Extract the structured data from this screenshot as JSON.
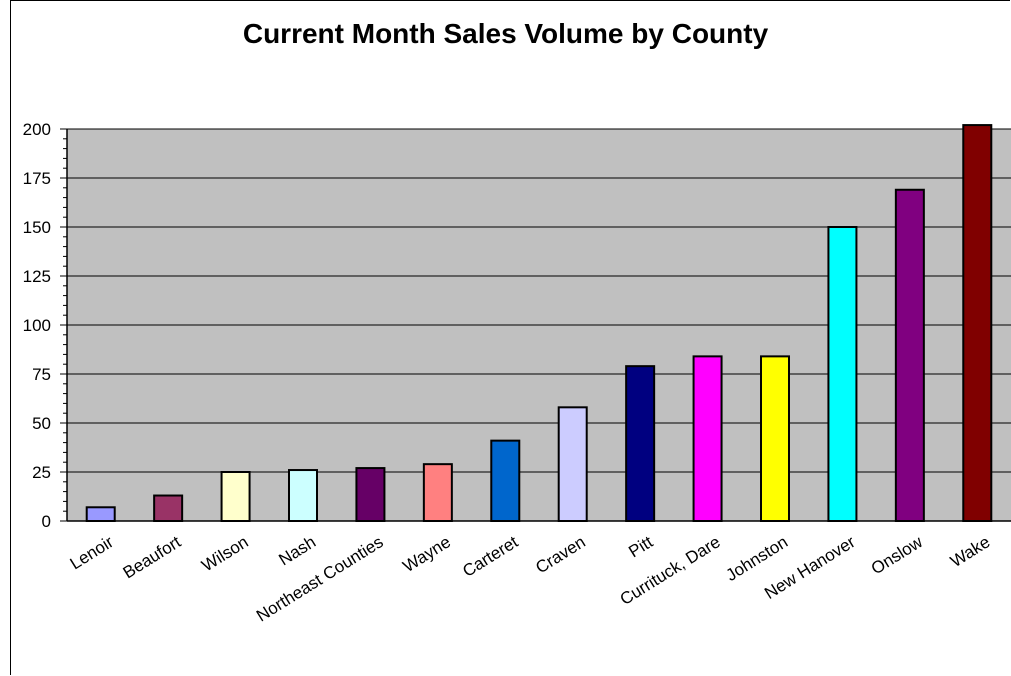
{
  "chart_data": {
    "type": "bar",
    "title": "Current Month Sales Volume by County",
    "xlabel": "",
    "ylabel": "",
    "ylim": [
      0,
      200
    ],
    "yticks": [
      0,
      25,
      50,
      75,
      100,
      125,
      150,
      175,
      200
    ],
    "minor_tick_step": 5,
    "grid": true,
    "legend": "none",
    "plot_background": "#c0c0c0",
    "categories": [
      "Lenoir",
      "Beaufort",
      "Wilson",
      "Nash",
      "Northeast Counties",
      "Wayne",
      "Carteret",
      "Craven",
      "Pitt",
      "Currituck, Dare",
      "Johnston",
      "New Hanover",
      "Onslow",
      "Wake"
    ],
    "values": [
      7,
      13,
      25,
      26,
      27,
      29,
      41,
      58,
      79,
      84,
      84,
      150,
      169,
      202
    ],
    "colors": [
      "#9999ff",
      "#993366",
      "#ffffcc",
      "#ccffff",
      "#660066",
      "#ff8080",
      "#0066cc",
      "#ccccff",
      "#000080",
      "#ff00ff",
      "#ffff00",
      "#00ffff",
      "#800080",
      "#800000"
    ]
  }
}
